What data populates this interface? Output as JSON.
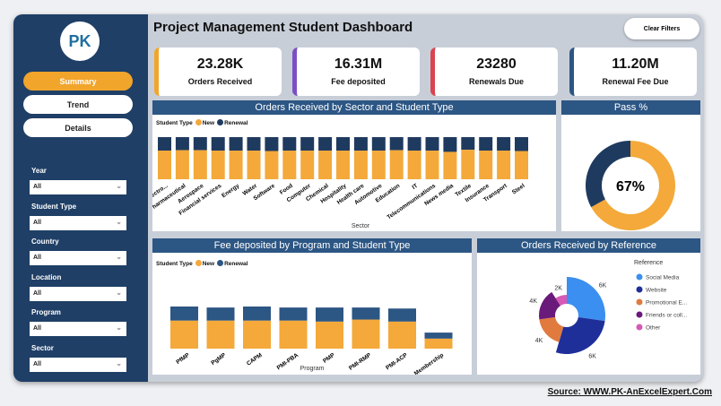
{
  "header": {
    "title": "Project Management Student Dashboard",
    "clear_filters": "Clear Filters"
  },
  "sidebar": {
    "logo": "PK",
    "nav": [
      {
        "label": "Summary",
        "active": true
      },
      {
        "label": "Trend"
      },
      {
        "label": "Details"
      }
    ],
    "filters": [
      {
        "label": "Year",
        "value": "All"
      },
      {
        "label": "Student Type",
        "value": "All"
      },
      {
        "label": "Country",
        "value": "All"
      },
      {
        "label": "Location",
        "value": "All"
      },
      {
        "label": "Program",
        "value": "All"
      },
      {
        "label": "Sector",
        "value": "All"
      }
    ]
  },
  "kpis": [
    {
      "value": "23.28K",
      "label": "Orders Received",
      "color": "#f2a52b"
    },
    {
      "value": "16.31M",
      "label": "Fee deposited",
      "color": "#7b4fc4"
    },
    {
      "value": "23280",
      "label": "Renewals Due",
      "color": "#d9444f"
    },
    {
      "value": "11.20M",
      "label": "Renewal Fee Due",
      "color": "#2c5684"
    }
  ],
  "colors": {
    "new": "#f4a93a",
    "renewal": "#1f3a5f",
    "renewal_fee": "#2c5684"
  },
  "chart_data": [
    {
      "type": "bar",
      "stacked": "100%",
      "title": "Orders Received by Sector and Student Type",
      "xlabel": "Sector",
      "legend_title": "Student Type",
      "legend_position": "top-left",
      "categories": [
        "Electro...",
        "Pharmaceutical",
        "Aerospace",
        "Financial services",
        "Energy",
        "Water",
        "Software",
        "Food",
        "Computer",
        "Chemical",
        "Hospitality",
        "Health care",
        "Automotive",
        "Education",
        "IT",
        "Telecommunications",
        "News media",
        "Textile",
        "Insurance",
        "Transport",
        "Steel"
      ],
      "series": [
        {
          "name": "New",
          "values": [
            68,
            69,
            69,
            68,
            68,
            68,
            67,
            68,
            68,
            68,
            68,
            68,
            68,
            69,
            68,
            68,
            65,
            70,
            68,
            68,
            67
          ]
        },
        {
          "name": "Renewal",
          "values": [
            32,
            31,
            31,
            32,
            32,
            32,
            33,
            32,
            32,
            32,
            32,
            32,
            32,
            31,
            32,
            32,
            35,
            30,
            32,
            32,
            33
          ]
        }
      ]
    },
    {
      "type": "pie",
      "title": "Pass %",
      "values": [
        67,
        33
      ],
      "label": "67%"
    },
    {
      "type": "bar",
      "stacked": true,
      "title": "Fee deposited by Program and Student Type",
      "xlabel": "Program",
      "legend_title": "Student Type",
      "legend_position": "top-left",
      "categories": [
        "PfMP",
        "PgMP",
        "CAPM",
        "PMI-PBA",
        "PMP",
        "PMI-RMP",
        "PMI-ACP",
        "Membership"
      ],
      "series": [
        {
          "name": "New",
          "values": [
            1.4,
            1.4,
            1.4,
            1.4,
            1.35,
            1.45,
            1.35,
            0.5
          ]
        },
        {
          "name": "Renewal",
          "values": [
            0.7,
            0.65,
            0.7,
            0.65,
            0.7,
            0.6,
            0.65,
            0.3
          ]
        }
      ]
    },
    {
      "type": "pie",
      "variant": "rose",
      "title": "Orders Received by Reference",
      "legend_title": "Reference",
      "legend_position": "right",
      "categories": [
        "Social Media",
        "Website",
        "Promotional E...",
        "Friends or coll...",
        "Other"
      ],
      "values": [
        6,
        6,
        4,
        4,
        2
      ],
      "labels": [
        "6K",
        "6K",
        "4K",
        "4K",
        "2K"
      ],
      "colors": [
        "#3b8ff0",
        "#1f2f9a",
        "#e07a3f",
        "#6a1a7a",
        "#d659b5"
      ]
    }
  ],
  "source": "Source: WWW.PK-AnExcelExpert.Com"
}
